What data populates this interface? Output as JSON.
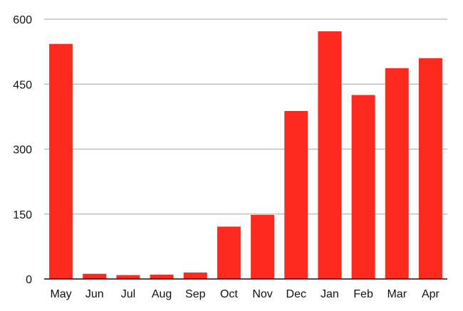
{
  "colors": {
    "bar": "#fe2a1e",
    "grid": "#b4b4b4",
    "axis": "#111111",
    "text": "#111111"
  },
  "chart_data": {
    "type": "bar",
    "title": "",
    "xlabel": "",
    "ylabel": "",
    "ylim": [
      0,
      600
    ],
    "yticks": [
      0,
      150,
      300,
      450,
      600
    ],
    "grid": true,
    "categories": [
      "May",
      "Jun",
      "Jul",
      "Aug",
      "Sep",
      "Oct",
      "Nov",
      "Dec",
      "Jan",
      "Feb",
      "Mar",
      "Apr"
    ],
    "values": [
      543,
      12,
      9,
      10,
      15,
      121,
      148,
      388,
      572,
      425,
      487,
      510
    ]
  }
}
